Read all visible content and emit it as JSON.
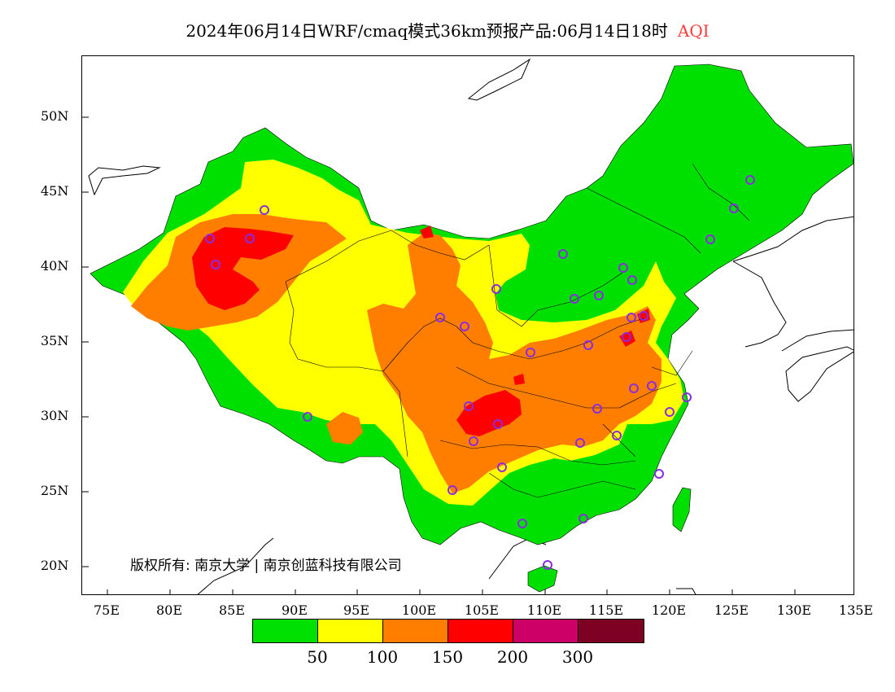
{
  "title": {
    "main": "2024年06月14日WRF/cmaq模式36km预报产品:06月14日18时",
    "variable": "AQI"
  },
  "axes": {
    "lat_labels": [
      "50N",
      "45N",
      "40N",
      "35N",
      "30N",
      "25N",
      "20N"
    ],
    "lon_labels": [
      "75E",
      "80E",
      "85E",
      "90E",
      "95E",
      "100E",
      "105E",
      "110E",
      "115E",
      "120E",
      "125E",
      "130E",
      "135E"
    ]
  },
  "copyright": "版权所有: 南京大学 | 南京创蓝科技有限公司",
  "legend": {
    "colors": [
      "#00e000",
      "#ffff00",
      "#ff7e00",
      "#ff0000",
      "#cc0066",
      "#7e0023"
    ],
    "labels": [
      "50",
      "100",
      "150",
      "200",
      "300"
    ]
  },
  "colors": {
    "good": "#00e000",
    "moderate": "#ffff00",
    "unhealthy_sensitive": "#ff7e00",
    "unhealthy": "#ff0000",
    "station_marker": "#8b2be2"
  }
}
